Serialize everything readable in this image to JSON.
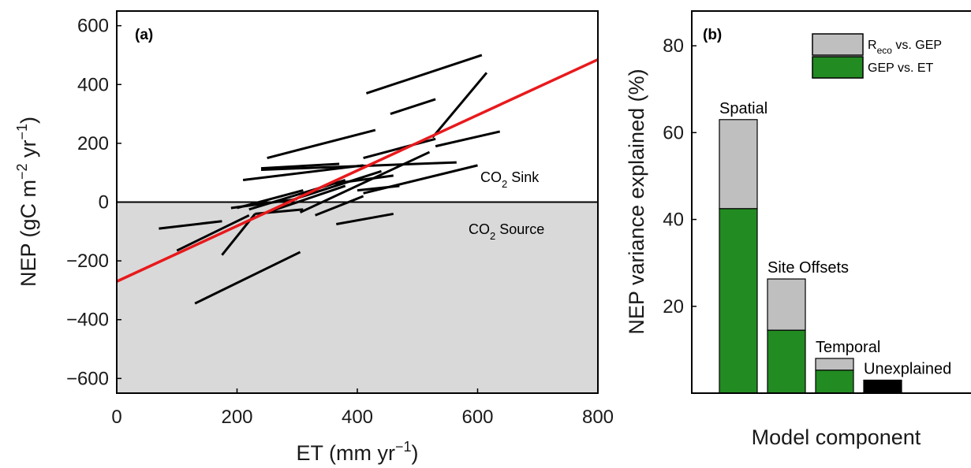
{
  "chart_data": [
    {
      "panel": "(a)",
      "type": "scatter",
      "xlabel": "ET (mm yr",
      "xlabel_sup": "−1",
      "xlabel_close": ")",
      "ylabel": "NEP (gC m",
      "ylabel_sup1": "−2",
      "ylabel_mid": " yr",
      "ylabel_sup2": "−1",
      "ylabel_close": ")",
      "xlim": [
        0,
        800
      ],
      "ylim": [
        -650,
        650
      ],
      "xticks": [
        "0",
        "200",
        "400",
        "600",
        "800"
      ],
      "yticks": [
        "600",
        "400",
        "200",
        "0",
        "−200",
        "−400",
        "−600"
      ],
      "xtick_values": [
        0,
        200,
        400,
        600,
        800
      ],
      "ytick_values": [
        600,
        400,
        200,
        0,
        -200,
        -400,
        -600
      ],
      "regions": {
        "sink": {
          "prefix": "CO",
          "sub": "2",
          "suffix": " Sink"
        },
        "source": {
          "prefix": "CO",
          "sub": "2",
          "suffix": " Source"
        },
        "source_color": "#d9d9d9"
      },
      "fit_line": {
        "color": "#e8191c",
        "x": [
          0,
          800
        ],
        "y": [
          -270,
          485
        ]
      },
      "site_segments": [
        {
          "x": [
            415,
            607
          ],
          "y": [
            370,
            500
          ]
        },
        {
          "x": [
            525,
            615
          ],
          "y": [
            220,
            440
          ]
        },
        {
          "x": [
            455,
            530
          ],
          "y": [
            300,
            350
          ]
        },
        {
          "x": [
            250,
            430
          ],
          "y": [
            150,
            245
          ]
        },
        {
          "x": [
            410,
            530
          ],
          "y": [
            150,
            215
          ]
        },
        {
          "x": [
            530,
            637
          ],
          "y": [
            190,
            240
          ]
        },
        {
          "x": [
            240,
            370
          ],
          "y": [
            115,
            130
          ]
        },
        {
          "x": [
            240,
            565
          ],
          "y": [
            110,
            135
          ]
        },
        {
          "x": [
            210,
            410
          ],
          "y": [
            75,
            125
          ]
        },
        {
          "x": [
            410,
            600
          ],
          "y": [
            30,
            125
          ]
        },
        {
          "x": [
            280,
            440
          ],
          "y": [
            0,
            105
          ]
        },
        {
          "x": [
            305,
            520
          ],
          "y": [
            -35,
            170
          ]
        },
        {
          "x": [
            220,
            380
          ],
          "y": [
            -25,
            75
          ]
        },
        {
          "x": [
            200,
            310
          ],
          "y": [
            -20,
            40
          ]
        },
        {
          "x": [
            250,
            380
          ],
          "y": [
            -35,
            55
          ]
        },
        {
          "x": [
            350,
            460
          ],
          "y": [
            60,
            90
          ]
        },
        {
          "x": [
            400,
            470
          ],
          "y": [
            40,
            55
          ]
        },
        {
          "x": [
            330,
            410
          ],
          "y": [
            -45,
            20
          ]
        },
        {
          "x": [
            190,
            300
          ],
          "y": [
            -20,
            10
          ]
        },
        {
          "x": [
            230,
            310
          ],
          "y": [
            -40,
            -25
          ]
        },
        {
          "x": [
            70,
            175
          ],
          "y": [
            -90,
            -65
          ]
        },
        {
          "x": [
            100,
            220
          ],
          "y": [
            -165,
            -45
          ]
        },
        {
          "x": [
            175,
            230
          ],
          "y": [
            -180,
            -40
          ]
        },
        {
          "x": [
            365,
            460
          ],
          "y": [
            -75,
            -40
          ]
        },
        {
          "x": [
            130,
            305
          ],
          "y": [
            -345,
            -170
          ]
        }
      ]
    },
    {
      "panel": "(b)",
      "type": "bar",
      "stacked": true,
      "xlabel": "Model component",
      "ylabel": "NEP variance explained (%)",
      "ylim": [
        0,
        88
      ],
      "yticks": [
        "20",
        "40",
        "60",
        "80"
      ],
      "ytick_values": [
        20,
        40,
        60,
        80
      ],
      "categories": [
        "Spatial",
        "Site Offsets",
        "Temporal",
        "Unexplained"
      ],
      "series": [
        {
          "name": "GEP vs. ET",
          "color": "#228b22",
          "values": [
            42.5,
            14.5,
            5.3,
            0
          ]
        },
        {
          "name": "R_eco vs. GEP",
          "color": "#bfbfbf",
          "values": [
            20.5,
            11.8,
            2.7,
            0
          ]
        },
        {
          "name": "",
          "color": "#000000",
          "values": [
            0,
            0,
            0,
            3
          ]
        }
      ],
      "legend": {
        "placement": "top-right",
        "entries": [
          {
            "prefix": "R",
            "sub": "eco",
            "suffix": " vs. GEP",
            "color": "#bfbfbf"
          },
          {
            "prefix": "GEP vs. ET",
            "sub": "",
            "suffix": "",
            "color": "#228b22"
          }
        ]
      }
    }
  ]
}
